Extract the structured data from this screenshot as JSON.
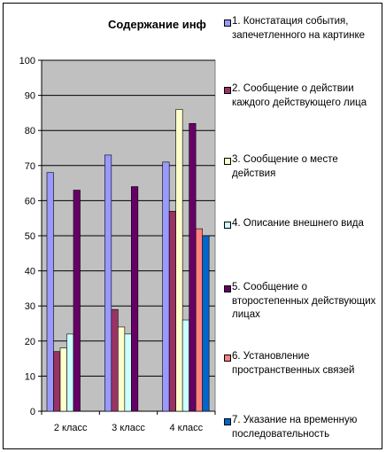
{
  "chart_data": {
    "type": "bar",
    "title": "Содержание инф",
    "categories": [
      "2 класс",
      "3 класс",
      "4 класс"
    ],
    "ylim": [
      0,
      100
    ],
    "yticks": [
      0,
      10,
      20,
      30,
      40,
      50,
      60,
      70,
      80,
      90,
      100
    ],
    "grid": true,
    "legend_position": "right",
    "plot_background": "#c0c0c0",
    "series": [
      {
        "name": "1. Констатация события, запечетленного на картинке",
        "color": "#9999ff",
        "values": [
          68,
          73,
          71
        ]
      },
      {
        "name": "2. Сообщение о действии каждого действующего лица",
        "color": "#993366",
        "values": [
          17,
          29,
          57
        ]
      },
      {
        "name": "3. Сообщение о месте действия",
        "color": "#ffffcc",
        "values": [
          18,
          24,
          86
        ]
      },
      {
        "name": "4. Описание внешнего вида",
        "color": "#ccffff",
        "values": [
          22,
          22,
          26
        ]
      },
      {
        "name": "5. Сообщение о второстепенных действующих лицах",
        "color": "#660066",
        "values": [
          63,
          64,
          82
        ]
      },
      {
        "name": "6. Установление пространственных связей",
        "color": "#ff8080",
        "values": [
          null,
          null,
          52
        ]
      },
      {
        "name": "7. Указание на временную последовательность",
        "color": "#0066cc",
        "values": [
          null,
          null,
          50
        ]
      }
    ]
  }
}
